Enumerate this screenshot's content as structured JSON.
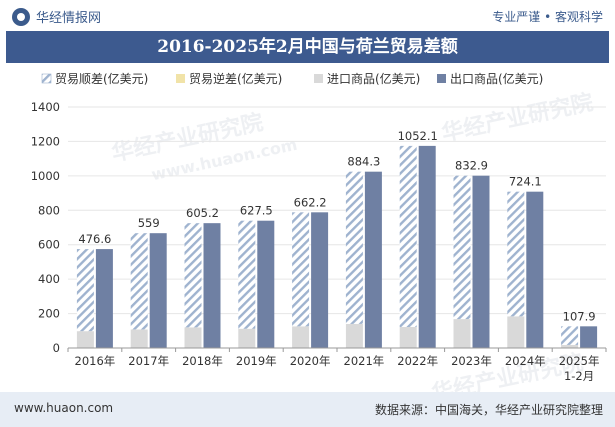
{
  "header": {
    "brand": "华经情报网",
    "slogan": "专业严谨 • 客观科学"
  },
  "title": "2016-2025年2月中国与荷兰贸易差额",
  "footer": {
    "site": "www.huaon.com",
    "source": "数据来源：中国海关，华经产业研究院整理"
  },
  "watermarks": [
    "华经产业研究院",
    "www.huaon.com",
    "华经产业研究院",
    "华经产业研究院"
  ],
  "colors": {
    "surplus_stripe": "#9fb3cf",
    "deficit": "#f1e3a8",
    "import": "#d9d9d9",
    "export": "#6f80a3",
    "accent": "#3d5a8f"
  },
  "chart_data": {
    "type": "bar",
    "title": "2016-2025年2月中国与荷兰贸易差额",
    "categories": [
      "2016年",
      "2017年",
      "2018年",
      "2019年",
      "2020年",
      "2021年",
      "2022年",
      "2023年",
      "2024年",
      "2025年 1-2月"
    ],
    "series": [
      {
        "name": "贸易顺差(亿美元)",
        "values": [
          476.6,
          559,
          605.2,
          627.5,
          662.2,
          884.3,
          1052.1,
          832.9,
          724.1,
          107.9
        ]
      },
      {
        "name": "贸易逆差(亿美元)",
        "values": [
          0,
          0,
          0,
          0,
          0,
          0,
          0,
          0,
          0,
          0
        ]
      },
      {
        "name": "进口商品(亿美元)",
        "values": [
          98,
          108,
          120,
          112,
          126,
          140,
          122,
          168,
          184,
          18
        ]
      },
      {
        "name": "出口商品(亿美元)",
        "values": [
          574.6,
          667,
          725.2,
          739.5,
          788.2,
          1024.3,
          1174.1,
          1000.9,
          908.1,
          125.9
        ]
      }
    ],
    "legend": [
      "贸易顺差(亿美元)",
      "贸易逆差(亿美元)",
      "进口商品(亿美元)",
      "出口商品(亿美元)"
    ],
    "data_labels": [
      "476.6",
      "559",
      "605.2",
      "627.5",
      "662.2",
      "884.3",
      "1052.1",
      "832.9",
      "724.1",
      "107.9"
    ],
    "y_ticks": [
      "0",
      "200",
      "400",
      "600",
      "800",
      "1000",
      "1200",
      "1400"
    ],
    "ylim": [
      0,
      1400
    ],
    "xlabel": "",
    "ylabel": "",
    "legend_position": "top"
  }
}
